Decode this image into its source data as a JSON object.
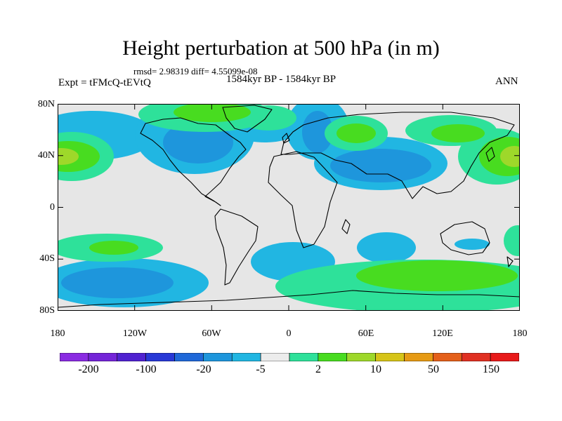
{
  "header": {
    "title": "Height perturbation at 500 hPa (in m)",
    "stats": "rmsd= 2.98319 diff= 4.55099e-08",
    "experiment": "Expt = tFMcQ-tEVtQ",
    "period": "1584kyr BP - 1584kyr BP",
    "season": "ANN"
  },
  "axes": {
    "y_ticks": [
      "80N",
      "40N",
      "0",
      "40S",
      "80S"
    ],
    "x_ticks": [
      "180",
      "120W",
      "60W",
      "0",
      "60E",
      "120E",
      "180"
    ]
  },
  "colorbar": {
    "colors": [
      "#8a2be2",
      "#7424d8",
      "#5022d0",
      "#2838d6",
      "#1f68d8",
      "#1e96dc",
      "#21b6e2",
      "#ececec",
      "#2ee19a",
      "#48dc20",
      "#9ed82a",
      "#d6c418",
      "#e69a14",
      "#e4601a",
      "#e03022",
      "#e81a1a"
    ],
    "labels": [
      "-200",
      "-100",
      "-20",
      "-5",
      "2",
      "10",
      "50",
      "150"
    ]
  },
  "map_colors": {
    "background": "#e6e6e6",
    "light_blue": "#21b6e2",
    "blue": "#1e96dc",
    "green": "#2ee19a",
    "bright_green": "#48dc20",
    "yellow_green": "#9ed82a"
  }
}
